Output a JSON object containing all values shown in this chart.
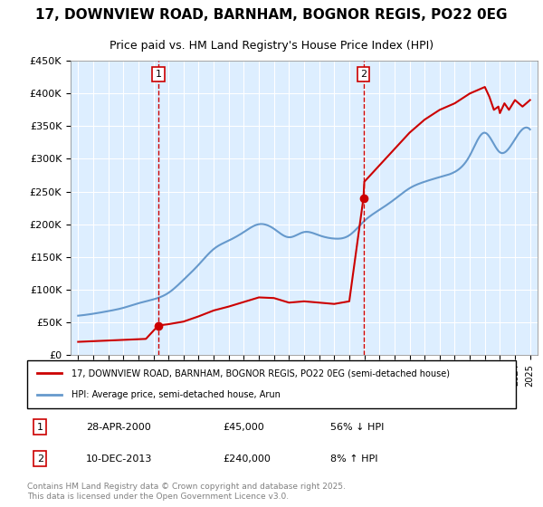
{
  "title_line1": "17, DOWNVIEW ROAD, BARNHAM, BOGNOR REGIS, PO22 0EG",
  "title_line2": "Price paid vs. HM Land Registry's House Price Index (HPI)",
  "xlabel": "",
  "ylabel": "",
  "ylim": [
    0,
    450000
  ],
  "yticks": [
    0,
    50000,
    100000,
    150000,
    200000,
    250000,
    300000,
    350000,
    400000,
    450000
  ],
  "ytick_labels": [
    "£0",
    "£50K",
    "£100K",
    "£150K",
    "£200K",
    "£250K",
    "£300K",
    "£350K",
    "£400K",
    "£450K"
  ],
  "sale1_date": 2000.32,
  "sale1_price": 45000,
  "sale1_label": "28-APR-2000",
  "sale1_amount": "£45,000",
  "sale1_hpi": "56% ↓ HPI",
  "sale2_date": 2013.94,
  "sale2_price": 240000,
  "sale2_label": "10-DEC-2013",
  "sale2_amount": "£240,000",
  "sale2_hpi": "8% ↑ HPI",
  "legend_line1": "17, DOWNVIEW ROAD, BARNHAM, BOGNOR REGIS, PO22 0EG (semi-detached house)",
  "legend_line2": "HPI: Average price, semi-detached house, Arun",
  "footer": "Contains HM Land Registry data © Crown copyright and database right 2025.\nThis data is licensed under the Open Government Licence v3.0.",
  "red_color": "#cc0000",
  "blue_color": "#6699cc",
  "bg_color": "#ddeeff",
  "hpi_years": [
    1995,
    1996,
    1997,
    1998,
    1999,
    2000,
    2001,
    2002,
    2003,
    2004,
    2005,
    2006,
    2007,
    2008,
    2009,
    2010,
    2011,
    2012,
    2013,
    2014,
    2015,
    2016,
    2017,
    2018,
    2019,
    2020,
    2021,
    2022,
    2023,
    2024,
    2025
  ],
  "hpi_values": [
    60000,
    63000,
    67000,
    72000,
    79000,
    85000,
    95000,
    115000,
    138000,
    162000,
    175000,
    188000,
    200000,
    193000,
    180000,
    188000,
    183000,
    178000,
    183000,
    205000,
    222000,
    238000,
    255000,
    265000,
    272000,
    280000,
    305000,
    340000,
    310000,
    330000,
    345000
  ],
  "red_years_pre1": [
    1995.0,
    1995.5,
    1996.0,
    1996.5,
    1997.0,
    1997.5,
    1998.0,
    1998.5,
    1999.0,
    1999.5,
    2000.32
  ],
  "red_values_pre1": [
    20000,
    20500,
    21000,
    21500,
    22000,
    22500,
    23000,
    23500,
    24000,
    24500,
    45000
  ],
  "red_years_post1": [
    2000.32,
    2001,
    2002,
    2003,
    2004,
    2005,
    2006,
    2007,
    2008,
    2009,
    2010,
    2011,
    2012,
    2013.0,
    2013.94
  ],
  "red_values_post1": [
    45000,
    47000,
    51000,
    59000,
    68000,
    74000,
    81000,
    88000,
    87000,
    80000,
    82000,
    80000,
    78000,
    82000,
    240000
  ],
  "red_years_post2": [
    2013.94,
    2014,
    2015,
    2016,
    2017,
    2018,
    2019,
    2020,
    2021,
    2022,
    2022.3,
    2022.6,
    2022.9,
    2023.0,
    2023.3,
    2023.6,
    2024.0,
    2024.5,
    2025.0
  ],
  "red_values_post2": [
    240000,
    265000,
    290000,
    315000,
    340000,
    360000,
    375000,
    385000,
    400000,
    410000,
    395000,
    375000,
    380000,
    370000,
    385000,
    375000,
    390000,
    380000,
    390000
  ]
}
